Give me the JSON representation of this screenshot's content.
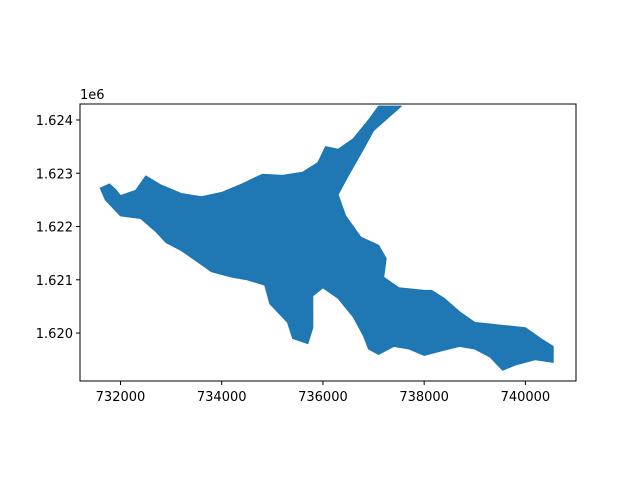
{
  "chart_data": {
    "type": "map",
    "title": "",
    "xlabel": "",
    "ylabel": "",
    "y_offset_label": "1e6",
    "xlim": [
      731200,
      741000
    ],
    "ylim": [
      1619100,
      1624300
    ],
    "x_ticks": [
      732000,
      734000,
      736000,
      738000,
      740000
    ],
    "x_tick_labels": [
      "732000",
      "734000",
      "736000",
      "738000",
      "740000"
    ],
    "y_ticks": [
      1620000,
      1621000,
      1622000,
      1623000,
      1624000
    ],
    "y_tick_labels": [
      "1.620",
      "1.621",
      "1.622",
      "1.623",
      "1.624"
    ],
    "grid": false,
    "fill_color": "#1f77b4",
    "polygon": [
      [
        731600,
        1622720
      ],
      [
        731780,
        1622800
      ],
      [
        731900,
        1622700
      ],
      [
        732000,
        1622580
      ],
      [
        732300,
        1622680
      ],
      [
        732500,
        1622950
      ],
      [
        732800,
        1622780
      ],
      [
        733200,
        1622620
      ],
      [
        733600,
        1622560
      ],
      [
        734000,
        1622640
      ],
      [
        734400,
        1622800
      ],
      [
        734800,
        1622980
      ],
      [
        735200,
        1622960
      ],
      [
        735600,
        1623020
      ],
      [
        735900,
        1623200
      ],
      [
        736050,
        1623500
      ],
      [
        736300,
        1623450
      ],
      [
        736600,
        1623650
      ],
      [
        736900,
        1624000
      ],
      [
        737100,
        1624260
      ],
      [
        737550,
        1624260
      ],
      [
        737300,
        1624050
      ],
      [
        737000,
        1623800
      ],
      [
        736800,
        1623450
      ],
      [
        736650,
        1623200
      ],
      [
        736500,
        1622950
      ],
      [
        736300,
        1622600
      ],
      [
        736450,
        1622200
      ],
      [
        736750,
        1621800
      ],
      [
        737100,
        1621650
      ],
      [
        737250,
        1621400
      ],
      [
        737200,
        1621050
      ],
      [
        737500,
        1620850
      ],
      [
        738000,
        1620800
      ],
      [
        738150,
        1620800
      ],
      [
        738400,
        1620650
      ],
      [
        738700,
        1620400
      ],
      [
        739000,
        1620200
      ],
      [
        739500,
        1620150
      ],
      [
        740000,
        1620100
      ],
      [
        740300,
        1619900
      ],
      [
        740550,
        1619750
      ],
      [
        740550,
        1619450
      ],
      [
        740200,
        1619500
      ],
      [
        739800,
        1619400
      ],
      [
        739550,
        1619300
      ],
      [
        739300,
        1619550
      ],
      [
        739000,
        1619700
      ],
      [
        738700,
        1619750
      ],
      [
        738400,
        1619680
      ],
      [
        738000,
        1619580
      ],
      [
        737700,
        1619700
      ],
      [
        737400,
        1619750
      ],
      [
        737100,
        1619600
      ],
      [
        736900,
        1619700
      ],
      [
        736800,
        1619950
      ],
      [
        736600,
        1620300
      ],
      [
        736300,
        1620650
      ],
      [
        736000,
        1620850
      ],
      [
        735800,
        1620700
      ],
      [
        735800,
        1620100
      ],
      [
        735700,
        1619800
      ],
      [
        735400,
        1619900
      ],
      [
        735300,
        1620200
      ],
      [
        734950,
        1620550
      ],
      [
        734850,
        1620900
      ],
      [
        734500,
        1621000
      ],
      [
        734200,
        1621050
      ],
      [
        733800,
        1621150
      ],
      [
        733500,
        1621350
      ],
      [
        733200,
        1621550
      ],
      [
        732900,
        1621700
      ],
      [
        732700,
        1621900
      ],
      [
        732400,
        1622150
      ],
      [
        732000,
        1622200
      ],
      [
        731700,
        1622500
      ]
    ]
  }
}
